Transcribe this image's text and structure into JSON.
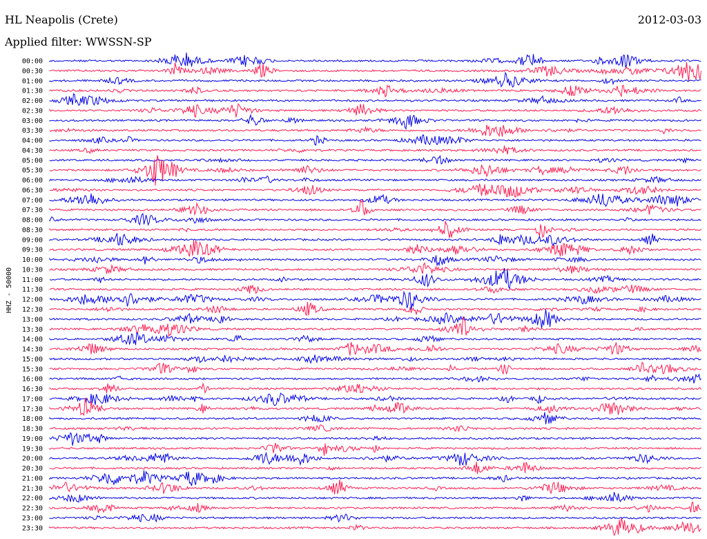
{
  "header": {
    "station": "HL Neapolis (Crete)",
    "date": "2012-03-03",
    "filter": "Applied filter: WWSSN-SP"
  },
  "chart_data": {
    "type": "line",
    "title": "HL Neapolis (Crete)",
    "ylabel": "HHZ - 50000",
    "row_labels": [
      "00:00",
      "00:30",
      "01:00",
      "01:30",
      "02:00",
      "02:30",
      "03:00",
      "03:30",
      "04:00",
      "04:30",
      "05:00",
      "05:30",
      "06:00",
      "06:30",
      "07:00",
      "07:30",
      "08:00",
      "08:30",
      "09:00",
      "09:30",
      "10:00",
      "10:30",
      "11:00",
      "11:30",
      "12:00",
      "12:30",
      "13:00",
      "13:30",
      "14:00",
      "14:30",
      "15:00",
      "15:30",
      "16:00",
      "16:30",
      "17:00",
      "17:30",
      "18:00",
      "18:30",
      "19:00",
      "19:30",
      "20:00",
      "20:30",
      "21:00",
      "21:30",
      "22:00",
      "22:30",
      "23:00",
      "23:30"
    ],
    "colors": [
      "#0000e6",
      "#ff1a50"
    ]
  }
}
